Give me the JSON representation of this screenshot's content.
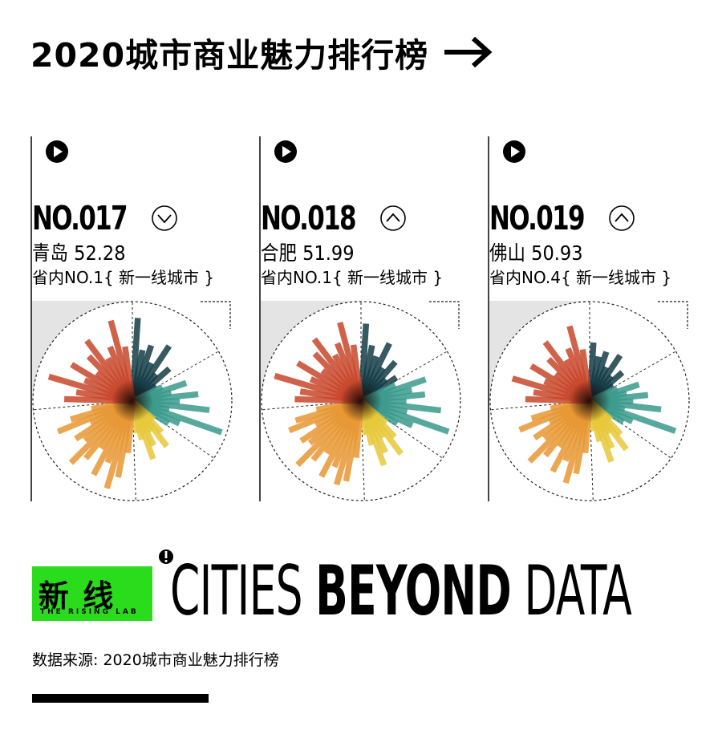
{
  "title": "2020城市商业魅力排行榜",
  "cards": [
    {
      "rank": "NO.017",
      "trend": "down",
      "city_score": "青岛 52.28",
      "province_line": "省内NO.1{ 新一线城市 }"
    },
    {
      "rank": "NO.018",
      "trend": "up",
      "city_score": "合肥 51.99",
      "province_line": "省内NO.1{ 新一线城市 }"
    },
    {
      "rank": "NO.019",
      "trend": "up",
      "city_score": "佛山 50.93",
      "province_line": "省内NO.4{ 新一线城市 }"
    }
  ],
  "brand": {
    "logo_cn": "新 线",
    "logo_en": "THE RISING LAB",
    "slogan_light": "CITIES",
    "slogan_bold": "BEYOND",
    "slogan_end": "DATA",
    "accent": "#2bdc1d"
  },
  "source_text": "数据来源: 2020城市商业魅力排行榜",
  "colors": {
    "dark_teal": "#143c46",
    "teal": "#3a9a8c",
    "yellow": "#e6c838",
    "orange": "#e89632",
    "red": "#c8462a"
  },
  "chart_data": [
    {
      "type": "radial-bar",
      "city": "青岛",
      "sectors": [
        {
          "color": "#143c46",
          "values": [
            88,
            55,
            62,
            45,
            70,
            38,
            52,
            30
          ]
        },
        {
          "color": "#3a9a8c",
          "values": [
            35,
            60,
            42,
            70,
            50,
            82,
            40,
            100,
            55,
            45
          ]
        },
        {
          "color": "#e6c838",
          "values": [
            30,
            45,
            60,
            38,
            52,
            65,
            42,
            34
          ]
        },
        {
          "color": "#e89632",
          "values": [
            55,
            82,
            96,
            70,
            88,
            60,
            78,
            92,
            65,
            72,
            50,
            85,
            68,
            44
          ]
        },
        {
          "color": "#c8462a",
          "values": [
            72,
            60,
            92,
            55,
            75,
            48,
            66,
            80,
            52,
            62,
            88,
            58
          ]
        }
      ]
    },
    {
      "type": "radial-bar",
      "city": "合肥",
      "sectors": [
        {
          "color": "#143c46",
          "values": [
            82,
            60,
            50,
            68,
            42,
            55,
            35,
            45
          ]
        },
        {
          "color": "#3a9a8c",
          "values": [
            40,
            72,
            55,
            68,
            48,
            85,
            50,
            98,
            60,
            45
          ]
        },
        {
          "color": "#e6c838",
          "values": [
            35,
            52,
            70,
            45,
            60,
            72,
            48,
            36
          ]
        },
        {
          "color": "#e89632",
          "values": [
            60,
            86,
            92,
            75,
            90,
            66,
            80,
            95,
            70,
            76,
            54,
            82,
            72,
            48
          ]
        },
        {
          "color": "#c8462a",
          "values": [
            70,
            65,
            95,
            58,
            78,
            52,
            70,
            82,
            56,
            66,
            86,
            60
          ]
        }
      ]
    },
    {
      "type": "radial-bar",
      "city": "佛山",
      "sectors": [
        {
          "color": "#143c46",
          "values": [
            62,
            48,
            55,
            40,
            58,
            35,
            46,
            30
          ]
        },
        {
          "color": "#3a9a8c",
          "values": [
            32,
            55,
            40,
            62,
            46,
            76,
            38,
            96,
            50,
            42
          ]
        },
        {
          "color": "#e6c838",
          "values": [
            30,
            48,
            64,
            40,
            55,
            68,
            44,
            32
          ]
        },
        {
          "color": "#e89632",
          "values": [
            55,
            78,
            90,
            68,
            84,
            58,
            74,
            90,
            62,
            70,
            48,
            80,
            64,
            42
          ]
        },
        {
          "color": "#c8462a",
          "values": [
            68,
            60,
            85,
            52,
            72,
            46,
            62,
            78,
            50,
            60,
            82,
            55
          ]
        }
      ]
    }
  ]
}
